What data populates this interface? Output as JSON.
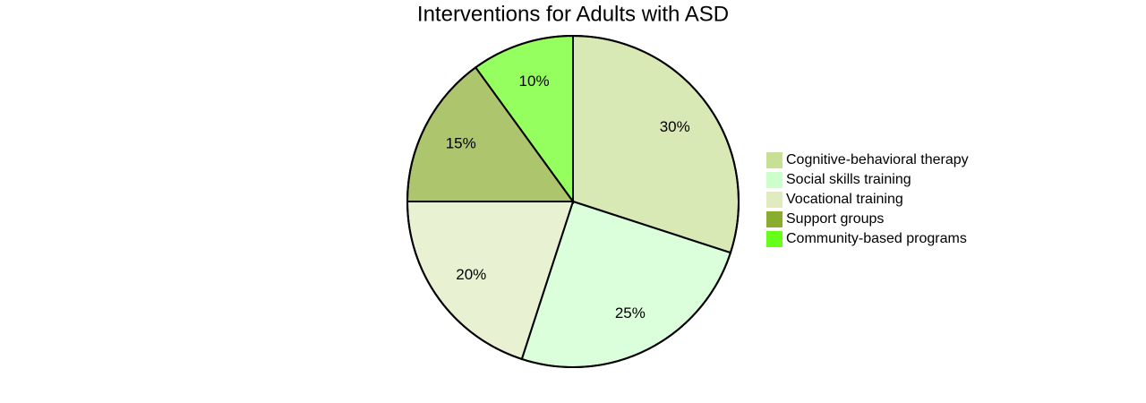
{
  "chart_data": {
    "type": "pie",
    "title": "Interventions for Adults with ASD",
    "categories": [
      "Cognitive-behavioral therapy",
      "Social skills training",
      "Vocational training",
      "Support groups",
      "Community-based programs"
    ],
    "values": [
      30,
      25,
      20,
      15,
      10
    ],
    "value_labels": [
      "30%",
      "25%",
      "20%",
      "15%",
      "10%"
    ],
    "colors": [
      "#c8e096",
      "#ccffcc",
      "#e0ebc0",
      "#8aad2e",
      "#66ff1a"
    ]
  }
}
